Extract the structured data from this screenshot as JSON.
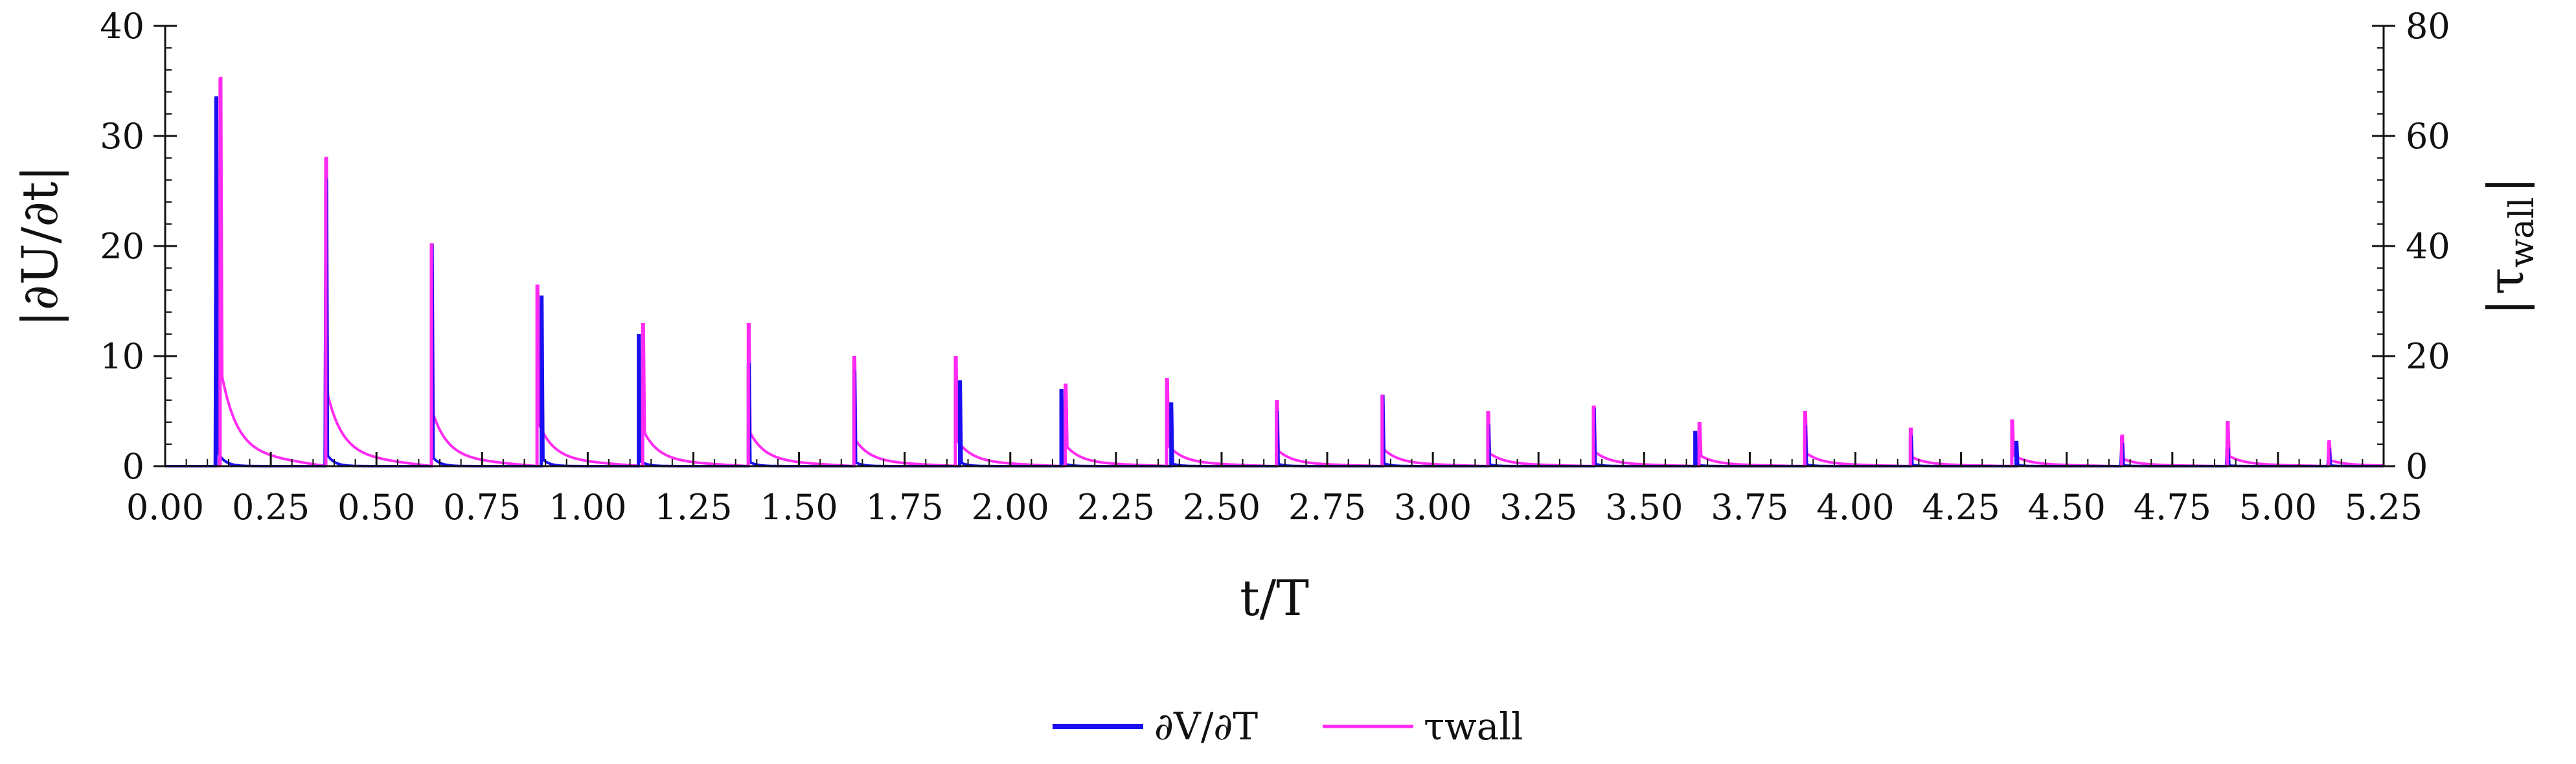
{
  "chart_data": {
    "type": "line",
    "title": "",
    "xlabel": "t/T",
    "ylabel": "|∂U/∂t|",
    "y2label_base": "τ",
    "y2label_sub": "wall",
    "xlim": [
      0,
      5.25
    ],
    "ylim": [
      0,
      40
    ],
    "y2lim": [
      0,
      80
    ],
    "x_ticks": [
      "0.00",
      "0.25",
      "0.50",
      "0.75",
      "1.00",
      "1.25",
      "1.50",
      "1.75",
      "2.00",
      "2.25",
      "2.50",
      "2.75",
      "3.00",
      "3.25",
      "3.50",
      "3.75",
      "4.00",
      "4.25",
      "4.50",
      "4.75",
      "5.00",
      "5.25"
    ],
    "y_ticks": [
      "0",
      "10",
      "20",
      "30",
      "40"
    ],
    "y2_ticks": [
      "0",
      "20",
      "40",
      "60",
      "80"
    ],
    "grid": false,
    "legend_position": "bottom-center",
    "series": [
      {
        "name": "∂V/∂T",
        "axis": "left",
        "color": "#1a0ff0",
        "peaks": [
          {
            "t": 0.12,
            "value": 33.5
          },
          {
            "t": 0.38,
            "value": 26.0
          },
          {
            "t": 0.63,
            "value": 20.2
          },
          {
            "t": 0.89,
            "value": 15.5
          },
          {
            "t": 1.12,
            "value": 12.0
          },
          {
            "t": 1.38,
            "value": 9.4
          },
          {
            "t": 1.63,
            "value": 8.7
          },
          {
            "t": 1.88,
            "value": 7.8
          },
          {
            "t": 2.12,
            "value": 7.0
          },
          {
            "t": 2.38,
            "value": 5.8
          },
          {
            "t": 2.63,
            "value": 5.0
          },
          {
            "t": 2.88,
            "value": 6.5
          },
          {
            "t": 3.13,
            "value": 3.8
          },
          {
            "t": 3.38,
            "value": 5.3
          },
          {
            "t": 3.62,
            "value": 3.2
          },
          {
            "t": 3.88,
            "value": 3.7
          },
          {
            "t": 4.13,
            "value": 2.8
          },
          {
            "t": 4.38,
            "value": 2.3
          },
          {
            "t": 4.63,
            "value": 2.0
          },
          {
            "t": 4.88,
            "value": 1.6
          },
          {
            "t": 5.12,
            "value": 1.5
          }
        ]
      },
      {
        "name": "τwall",
        "axis": "right",
        "color": "#ff2bf2",
        "peaks": [
          {
            "t": 0.13,
            "value": 70.5
          },
          {
            "t": 0.38,
            "value": 56.0
          },
          {
            "t": 0.63,
            "value": 40.5
          },
          {
            "t": 0.88,
            "value": 33.0
          },
          {
            "t": 1.13,
            "value": 26.0
          },
          {
            "t": 1.38,
            "value": 26.0
          },
          {
            "t": 1.63,
            "value": 20.0
          },
          {
            "t": 1.87,
            "value": 20.0
          },
          {
            "t": 2.13,
            "value": 15.0
          },
          {
            "t": 2.37,
            "value": 16.0
          },
          {
            "t": 2.63,
            "value": 12.0
          },
          {
            "t": 2.88,
            "value": 13.0
          },
          {
            "t": 3.13,
            "value": 10.0
          },
          {
            "t": 3.38,
            "value": 11.0
          },
          {
            "t": 3.63,
            "value": 8.0
          },
          {
            "t": 3.88,
            "value": 10.0
          },
          {
            "t": 4.13,
            "value": 7.0
          },
          {
            "t": 4.37,
            "value": 8.5
          },
          {
            "t": 4.63,
            "value": 5.5
          },
          {
            "t": 4.88,
            "value": 8.0
          },
          {
            "t": 5.12,
            "value": 4.5
          }
        ]
      }
    ]
  }
}
